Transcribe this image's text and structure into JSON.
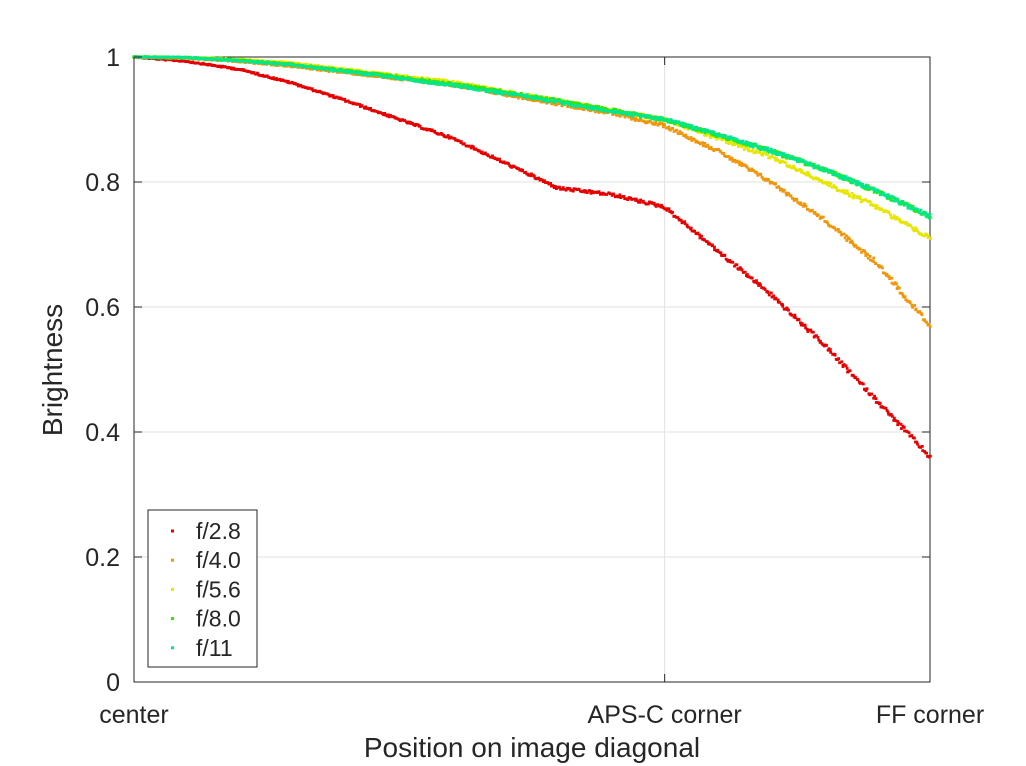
{
  "chart_data": {
    "type": "scatter",
    "title": "",
    "xlabel": "Position on image diagonal",
    "ylabel": "Brightness",
    "xlim": [
      0,
      1.5
    ],
    "ylim": [
      0,
      1
    ],
    "grid": true,
    "legend_placement": "bottom-left",
    "x_ticks": [
      {
        "value": 0,
        "label": "center"
      },
      {
        "value": 1.0,
        "label": "APS-C corner"
      },
      {
        "value": 1.5,
        "label": "FF corner"
      }
    ],
    "y_ticks": [
      {
        "value": 0,
        "label": "0"
      },
      {
        "value": 0.2,
        "label": "0.2"
      },
      {
        "value": 0.4,
        "label": "0.4"
      },
      {
        "value": 0.6,
        "label": "0.6"
      },
      {
        "value": 0.8,
        "label": "0.8"
      },
      {
        "value": 1,
        "label": "1"
      }
    ],
    "x": [
      0,
      0.1,
      0.2,
      0.3,
      0.4,
      0.5,
      0.6,
      0.7,
      0.8,
      0.9,
      1.0,
      1.1,
      1.2,
      1.3,
      1.4,
      1.5
    ],
    "series": [
      {
        "name": "f/2.8",
        "color": "#e60000",
        "values": [
          1.0,
          0.993,
          0.98,
          0.958,
          0.93,
          0.9,
          0.87,
          0.83,
          0.79,
          0.78,
          0.76,
          0.69,
          0.62,
          0.54,
          0.45,
          0.36
        ]
      },
      {
        "name": "f/4.0",
        "color": "#f0960a",
        "values": [
          1.0,
          0.998,
          0.993,
          0.985,
          0.975,
          0.965,
          0.955,
          0.94,
          0.925,
          0.91,
          0.89,
          0.85,
          0.8,
          0.74,
          0.67,
          0.57
        ]
      },
      {
        "name": "f/5.6",
        "color": "#e6e600",
        "values": [
          1.0,
          0.999,
          0.996,
          0.99,
          0.98,
          0.97,
          0.96,
          0.945,
          0.93,
          0.915,
          0.9,
          0.87,
          0.84,
          0.8,
          0.76,
          0.71
        ]
      },
      {
        "name": "f/8.0",
        "color": "#32e600",
        "values": [
          1.0,
          0.999,
          0.995,
          0.988,
          0.978,
          0.968,
          0.957,
          0.944,
          0.93,
          0.915,
          0.9,
          0.875,
          0.85,
          0.82,
          0.785,
          0.745
        ]
      },
      {
        "name": "f/11",
        "color": "#00e68c",
        "values": [
          1.0,
          0.999,
          0.994,
          0.987,
          0.977,
          0.966,
          0.955,
          0.942,
          0.928,
          0.913,
          0.9,
          0.876,
          0.85,
          0.82,
          0.785,
          0.745
        ]
      }
    ]
  }
}
